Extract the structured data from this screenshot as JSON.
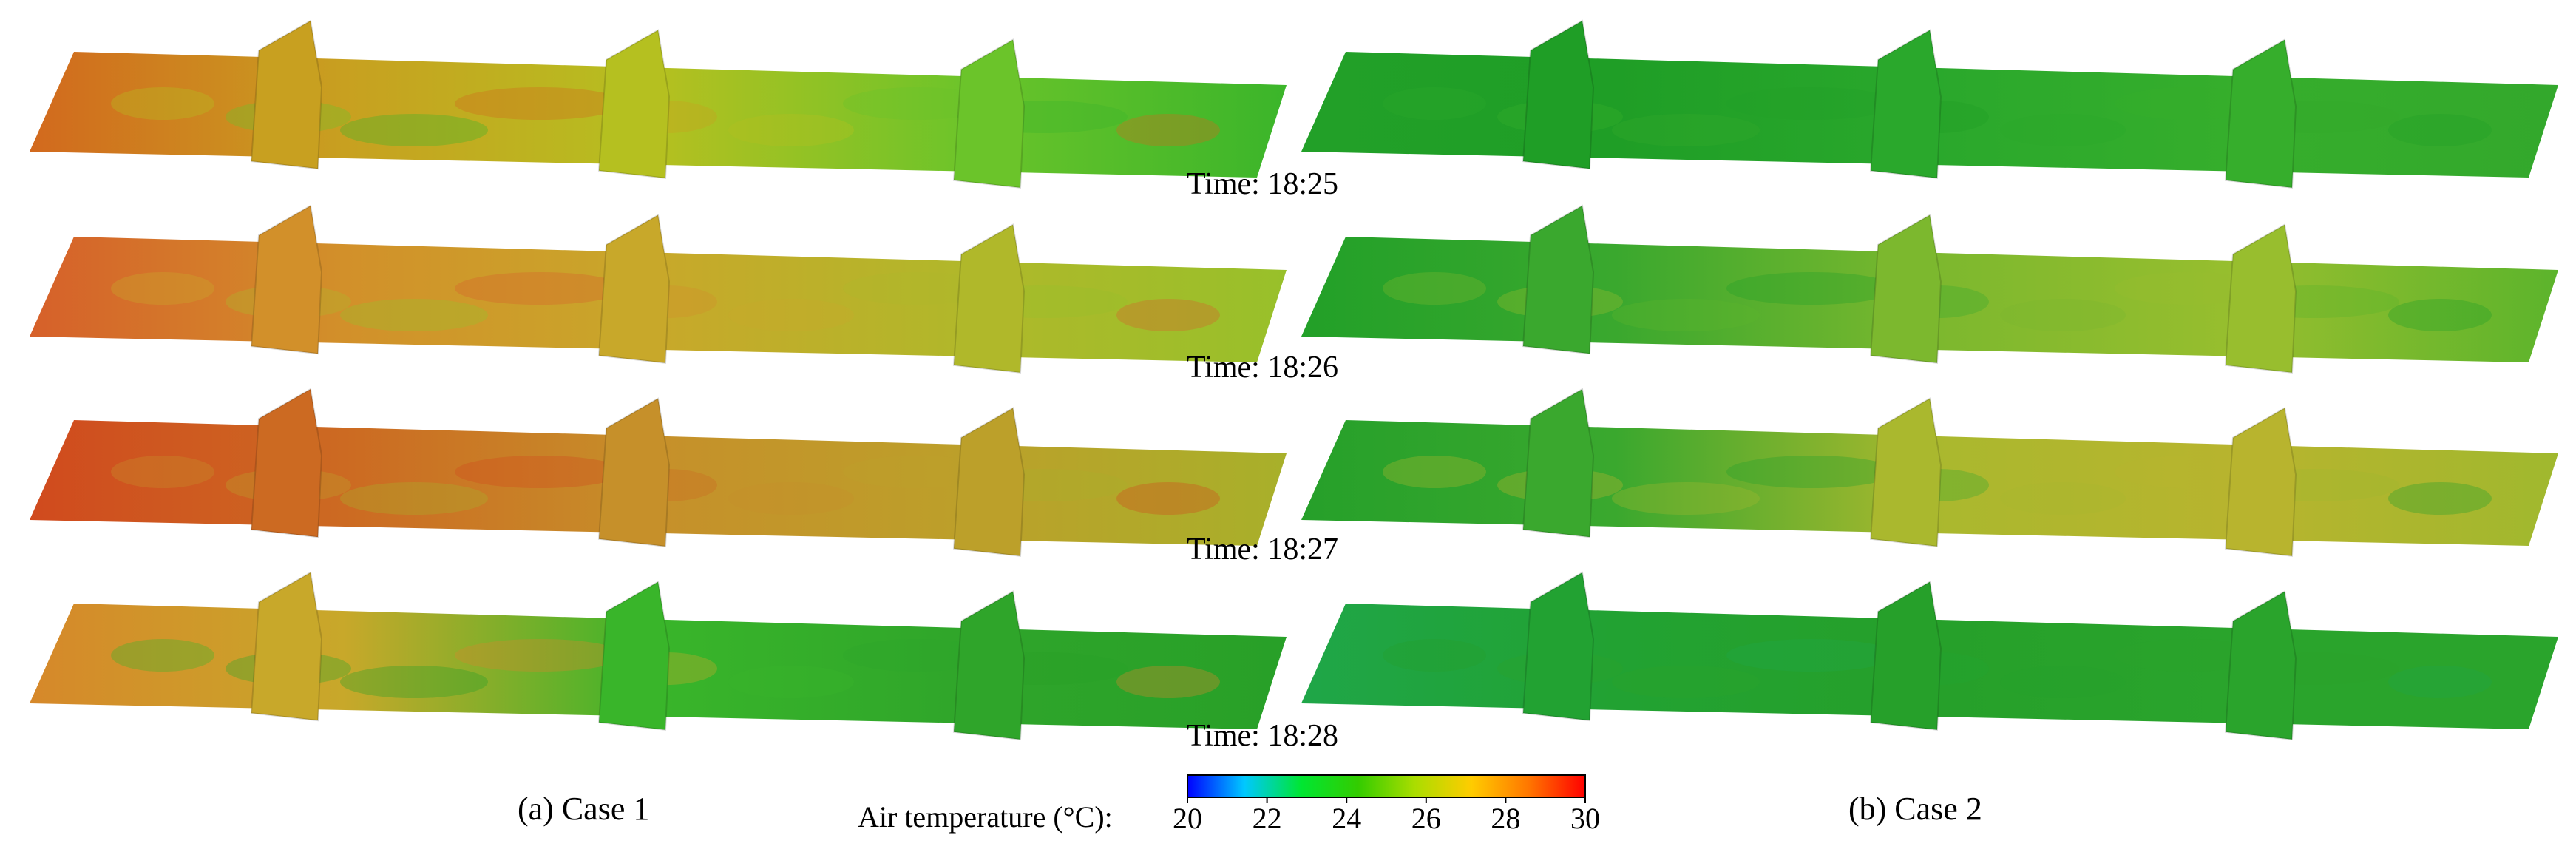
{
  "times": [
    "Time: 18:25",
    "Time: 18:26",
    "Time: 18:27",
    "Time: 18:28"
  ],
  "cases": [
    "(a) Case 1",
    "(b) Case 2"
  ],
  "colorbar": {
    "label": "Air temperature (°C):",
    "ticks": [
      "20",
      "22",
      "24",
      "26",
      "28",
      "30"
    ],
    "colors": [
      "#0000ff",
      "#00c8ff",
      "#00e632",
      "#33cc00",
      "#aadd00",
      "#ffcc00",
      "#ff7700",
      "#ff0000"
    ]
  },
  "panels": {
    "case1": [
      {
        "time": "18:25",
        "stops": [
          "#d2691e",
          "#c8a020",
          "#b5c020",
          "#6bc42a",
          "#3bb52a"
        ]
      },
      {
        "time": "18:26",
        "stops": [
          "#d6602a",
          "#d2902a",
          "#c8a82a",
          "#b0b82a",
          "#98c02a"
        ]
      },
      {
        "time": "18:27",
        "stops": [
          "#d04a1e",
          "#cc6a22",
          "#c6902a",
          "#bca02a",
          "#a8b02a"
        ]
      },
      {
        "time": "18:28",
        "stops": [
          "#d6882a",
          "#c8a82a",
          "#39b52a",
          "#2fa52a",
          "#28a028"
        ]
      }
    ],
    "case2": [
      {
        "time": "18:25",
        "stops": [
          "#22a028",
          "#1f9e26",
          "#2aa82c",
          "#36ae2c",
          "#33a82c"
        ]
      },
      {
        "time": "18:26",
        "stops": [
          "#22a028",
          "#3aa82e",
          "#7cb82e",
          "#98be2e",
          "#5cb42c"
        ]
      },
      {
        "time": "18:27",
        "stops": [
          "#26a02a",
          "#3aa82e",
          "#aab82e",
          "#b8b42e",
          "#a0b82e"
        ]
      },
      {
        "time": "18:28",
        "stops": [
          "#1fa648",
          "#22a232",
          "#26a02a",
          "#2aa42c",
          "#2aa42c"
        ]
      }
    ]
  }
}
